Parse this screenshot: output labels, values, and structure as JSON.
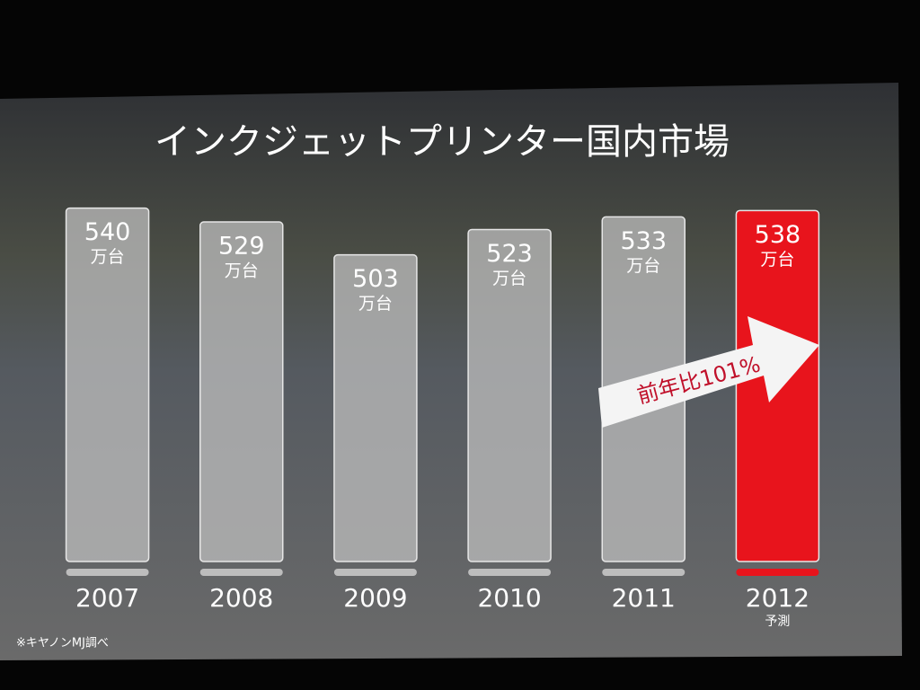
{
  "chart_data": {
    "type": "bar",
    "title": "インクジェットプリンター国内市場",
    "categories": [
      "2007",
      "2008",
      "2009",
      "2010",
      "2011",
      "2012"
    ],
    "values": [
      540,
      529,
      503,
      523,
      533,
      538
    ],
    "unit": "万台",
    "colors": [
      "#bdbdbd",
      "#bdbdbd",
      "#bdbdbd",
      "#bdbdbd",
      "#bdbdbd",
      "#e8141c"
    ],
    "category_note": {
      "index": 5,
      "text": "予測"
    },
    "ylim": [
      260,
      560
    ],
    "annotation": "前年比101%",
    "source": "※キヤノンMJ調べ"
  }
}
